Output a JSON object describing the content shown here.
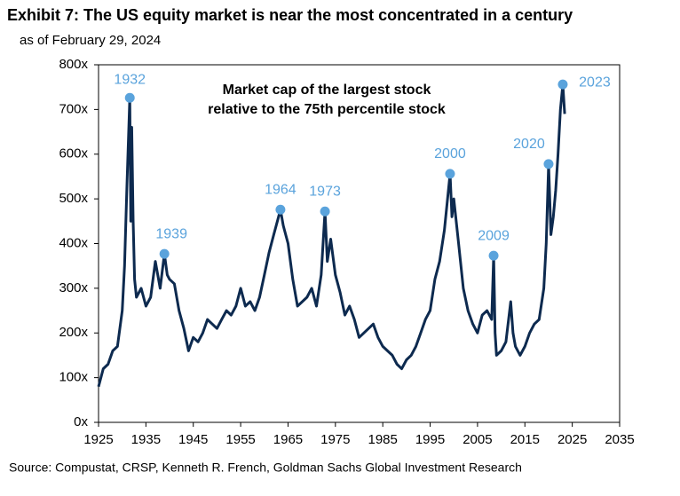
{
  "chart_data": {
    "type": "line",
    "title": "Exhibit 7: The US equity market is near the most concentrated in a century",
    "subtitle": "as of February 29, 2024",
    "annotation": [
      "Market cap of the largest stock",
      "relative to the 75th percentile stock"
    ],
    "source": "Source: Compustat, CRSP, Kenneth R. French, Goldman Sachs Global Investment Research",
    "color": "#0d2a4f",
    "x": [
      1925,
      1926,
      1927,
      1928,
      1929,
      1930,
      1930.5,
      1931,
      1931.6,
      1931.8,
      1932,
      1932.3,
      1932.6,
      1933,
      1934,
      1935,
      1936,
      1937,
      1938,
      1938.9,
      1939.5,
      1940,
      1941,
      1942,
      1943,
      1944,
      1945,
      1946,
      1947,
      1948,
      1949,
      1950,
      1951,
      1952,
      1953,
      1954,
      1955,
      1956,
      1957,
      1958,
      1959,
      1960,
      1961,
      1962,
      1963,
      1963.4,
      1964,
      1965,
      1966,
      1967,
      1968,
      1969,
      1970,
      1971,
      1972,
      1972.8,
      1973.3,
      1974,
      1975,
      1976,
      1977,
      1978,
      1979,
      1980,
      1981,
      1982,
      1983,
      1984,
      1985,
      1986,
      1987,
      1988,
      1989,
      1990,
      1991,
      1992,
      1993,
      1994,
      1995,
      1996,
      1997,
      1998,
      1999.2,
      1999.6,
      2000,
      2001,
      2002,
      2003,
      2004,
      2005,
      2006,
      2007,
      2008,
      2008.4,
      2008.7,
      2009,
      2010,
      2011,
      2012,
      2012.5,
      2013,
      2014,
      2015,
      2016,
      2017,
      2018,
      2019,
      2019.5,
      2020,
      2020.5,
      2021,
      2021.5,
      2022,
      2022.5,
      2023,
      2023.4
    ],
    "values": [
      80,
      120,
      130,
      160,
      170,
      250,
      350,
      530,
      726,
      450,
      660,
      450,
      320,
      280,
      300,
      260,
      280,
      360,
      300,
      377,
      330,
      320,
      310,
      250,
      210,
      160,
      190,
      180,
      200,
      230,
      220,
      210,
      230,
      250,
      240,
      260,
      300,
      260,
      270,
      250,
      280,
      330,
      380,
      420,
      460,
      476,
      440,
      400,
      320,
      260,
      270,
      280,
      300,
      260,
      330,
      472,
      360,
      410,
      330,
      290,
      240,
      260,
      230,
      190,
      200,
      210,
      220,
      190,
      170,
      160,
      150,
      130,
      120,
      140,
      150,
      170,
      200,
      230,
      250,
      320,
      360,
      430,
      556,
      460,
      500,
      400,
      300,
      250,
      220,
      200,
      240,
      250,
      230,
      373,
      200,
      150,
      160,
      180,
      270,
      200,
      170,
      150,
      170,
      200,
      220,
      230,
      300,
      400,
      578,
      420,
      460,
      520,
      600,
      700,
      756,
      690
    ],
    "peaks": {
      "color": "#5aa3dc",
      "labels": [
        "1932",
        "1939",
        "1964",
        "1973",
        "2000",
        "2009",
        "2020",
        "2023"
      ],
      "x": [
        1931.6,
        1938.9,
        1963.4,
        1972.8,
        1999.2,
        2008.4,
        2020,
        2023
      ],
      "values": [
        726,
        377,
        476,
        472,
        556,
        373,
        578,
        756
      ]
    },
    "xlim": [
      1925,
      2035
    ],
    "xticks": [
      1925,
      1935,
      1945,
      1955,
      1965,
      1975,
      1985,
      1995,
      2005,
      2015,
      2025,
      2035
    ],
    "ylim": [
      0,
      800
    ],
    "yticks": [
      {
        "value": 0,
        "label": "0x"
      },
      {
        "value": 100,
        "label": "100x"
      },
      {
        "value": 200,
        "label": "200x"
      },
      {
        "value": 300,
        "label": "300x"
      },
      {
        "value": 400,
        "label": "400x"
      },
      {
        "value": 500,
        "label": "500x"
      },
      {
        "value": 600,
        "label": "600x"
      },
      {
        "value": 700,
        "label": "700x"
      },
      {
        "value": 800,
        "label": "800x"
      }
    ]
  }
}
